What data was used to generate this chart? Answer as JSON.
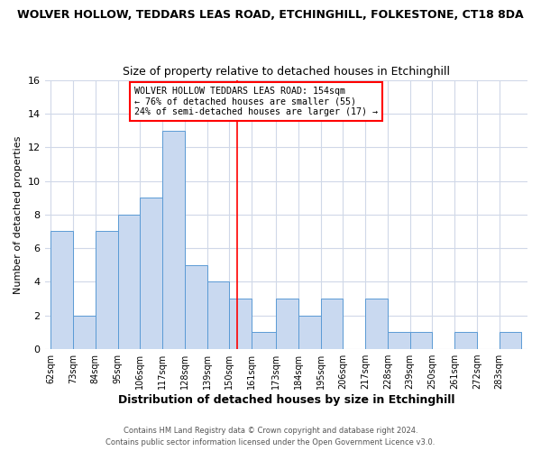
{
  "title1": "WOLVER HOLLOW, TEDDARS LEAS ROAD, ETCHINGHILL, FOLKESTONE, CT18 8DA",
  "title2": "Size of property relative to detached houses in Etchinghill",
  "xlabel": "Distribution of detached houses by size in Etchinghill",
  "ylabel": "Number of detached properties",
  "bar_labels": [
    "62sqm",
    "73sqm",
    "84sqm",
    "95sqm",
    "106sqm",
    "117sqm",
    "128sqm",
    "139sqm",
    "150sqm",
    "161sqm",
    "173sqm",
    "184sqm",
    "195sqm",
    "206sqm",
    "217sqm",
    "228sqm",
    "239sqm",
    "250sqm",
    "261sqm",
    "272sqm",
    "283sqm"
  ],
  "bar_values": [
    7,
    2,
    7,
    8,
    9,
    13,
    5,
    4,
    3,
    1,
    3,
    2,
    3,
    0,
    3,
    1,
    1,
    0,
    1,
    0,
    1
  ],
  "bar_color": "#c9d9f0",
  "bar_edge_color": "#5b9bd5",
  "reference_line_x": 154,
  "bin_edges": [
    62,
    73,
    84,
    95,
    106,
    117,
    128,
    139,
    150,
    161,
    173,
    184,
    195,
    206,
    217,
    228,
    239,
    250,
    261,
    272,
    283,
    294
  ],
  "annotation_title": "WOLVER HOLLOW TEDDARS LEAS ROAD: 154sqm",
  "annotation_line1": "← 76% of detached houses are smaller (55)",
  "annotation_line2": "24% of semi-detached houses are larger (17) →",
  "ylim": [
    0,
    16
  ],
  "yticks": [
    0,
    2,
    4,
    6,
    8,
    10,
    12,
    14,
    16
  ],
  "footer1": "Contains HM Land Registry data © Crown copyright and database right 2024.",
  "footer2": "Contains public sector information licensed under the Open Government Licence v3.0.",
  "bg_color": "#ffffff",
  "plot_bg_color": "#ffffff",
  "grid_color": "#d0d8e8"
}
